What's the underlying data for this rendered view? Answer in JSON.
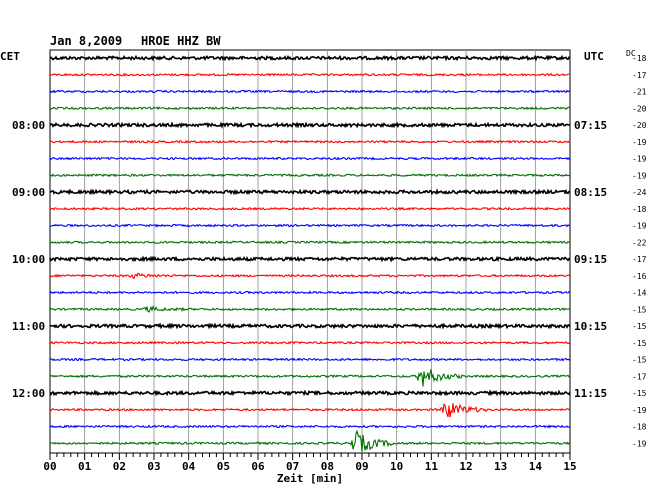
{
  "header": {
    "date": "Jan 8,2009",
    "station": "HROE HHZ BW",
    "left_tz": "CET",
    "right_tz": "UTC",
    "dc_label": "DC"
  },
  "chart_data": {
    "type": "line",
    "title": "Jan 8,2009   HROE HHZ BW",
    "xlabel": "Zeit [min]",
    "xlim": [
      0,
      15
    ],
    "x_ticks": [
      "00",
      "01",
      "02",
      "03",
      "04",
      "05",
      "06",
      "07",
      "08",
      "09",
      "10",
      "11",
      "12",
      "13",
      "14",
      "15"
    ],
    "grid": true,
    "trace_colors": [
      "#000000",
      "#ff0000",
      "#0000ff",
      "#007000"
    ],
    "left_time_labels": [
      "08:00",
      "09:00",
      "10:00",
      "11:00",
      "12:00"
    ],
    "right_time_labels": [
      "07:15",
      "08:15",
      "09:15",
      "10:15",
      "11:15"
    ],
    "dc_offsets": [
      "-18",
      "-17",
      "-21",
      "-20",
      "-20",
      "-19",
      "-19",
      "-19",
      "-24",
      "-18",
      "-19",
      "-22",
      "-17",
      "-16",
      "-14",
      "-15",
      "-15",
      "-15",
      "-15",
      "-17",
      "-15",
      "-19",
      "-18",
      "-19"
    ],
    "events": [
      {
        "trace": 19,
        "minute": 10.7,
        "amplitude": 0.8
      },
      {
        "trace": 21,
        "minute": 11.4,
        "amplitude": 0.7
      },
      {
        "trace": 23,
        "minute": 8.8,
        "amplitude": 0.9
      },
      {
        "trace": 13,
        "minute": 2.4,
        "amplitude": 0.15
      },
      {
        "trace": 15,
        "minute": 2.8,
        "amplitude": 0.15
      }
    ]
  }
}
